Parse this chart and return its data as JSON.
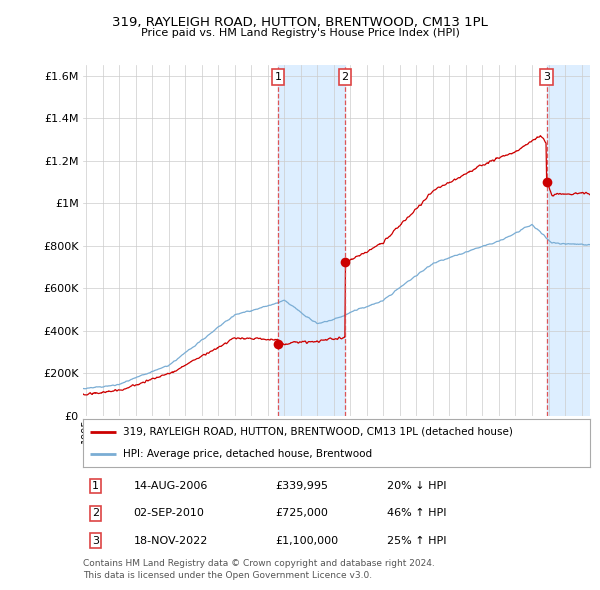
{
  "title": "319, RAYLEIGH ROAD, HUTTON, BRENTWOOD, CM13 1PL",
  "subtitle": "Price paid vs. HM Land Registry's House Price Index (HPI)",
  "legend_property": "319, RAYLEIGH ROAD, HUTTON, BRENTWOOD, CM13 1PL (detached house)",
  "legend_hpi": "HPI: Average price, detached house, Brentwood",
  "footnote1": "Contains HM Land Registry data © Crown copyright and database right 2024.",
  "footnote2": "This data is licensed under the Open Government Licence v3.0.",
  "transactions": [
    {
      "num": 1,
      "date": "14-AUG-2006",
      "price": "£339,995",
      "change": "20% ↓ HPI",
      "year": 2006.62,
      "value": 339995
    },
    {
      "num": 2,
      "date": "02-SEP-2010",
      "price": "£725,000",
      "change": "46% ↑ HPI",
      "year": 2010.67,
      "value": 725000
    },
    {
      "num": 3,
      "date": "18-NOV-2022",
      "price": "£1,100,000",
      "change": "25% ↑ HPI",
      "year": 2022.88,
      "value": 1100000
    }
  ],
  "property_color": "#cc0000",
  "hpi_color": "#7aadd4",
  "vline_color": "#dd4444",
  "shade_color": "#ddeeff",
  "ylim": [
    0,
    1650000
  ],
  "xlim_start": 1994.8,
  "xlim_end": 2025.5,
  "background_color": "#ffffff",
  "grid_color": "#cccccc",
  "yticks": [
    0,
    200000,
    400000,
    600000,
    800000,
    1000000,
    1200000,
    1400000,
    1600000
  ]
}
